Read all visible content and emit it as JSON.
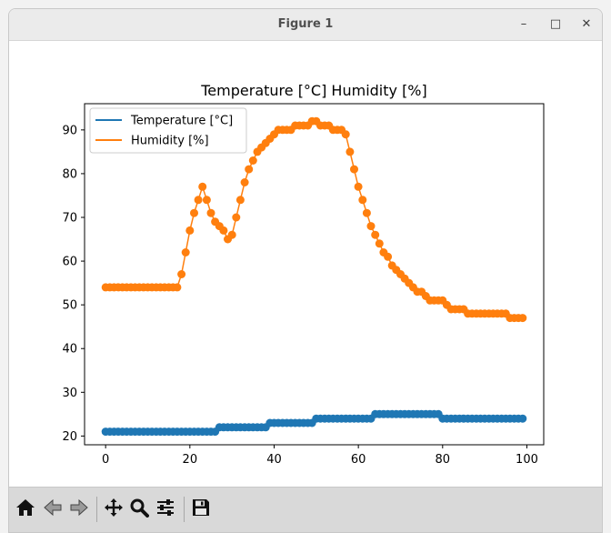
{
  "window": {
    "title": "Figure 1",
    "controls": {
      "minimize": "–",
      "maximize": "□",
      "close": "✕"
    }
  },
  "toolbar": {
    "buttons": [
      "home-icon",
      "back-arrow-icon",
      "forward-arrow-icon",
      "pan-icon",
      "zoom-icon",
      "configure-subplots-icon",
      "save-icon"
    ]
  },
  "colors": {
    "temperature": "#1f77b4",
    "humidity": "#ff7f0e"
  },
  "chart_data": {
    "type": "line",
    "title": "Temperature [°C] Humidity [%]",
    "xlabel": "",
    "ylabel": "",
    "xlim": [
      -5,
      104
    ],
    "ylim": [
      18,
      96
    ],
    "xticks": [
      0,
      20,
      40,
      60,
      80,
      100
    ],
    "yticks": [
      20,
      30,
      40,
      50,
      60,
      70,
      80,
      90
    ],
    "legend_position": "upper-left",
    "grid": false,
    "markers": true,
    "series": [
      {
        "name": "Temperature [°C]",
        "color": "#1f77b4",
        "x": [
          0,
          1,
          2,
          3,
          4,
          5,
          6,
          7,
          8,
          9,
          10,
          11,
          12,
          13,
          14,
          15,
          16,
          17,
          18,
          19,
          20,
          21,
          22,
          23,
          24,
          25,
          26,
          27,
          28,
          29,
          30,
          31,
          32,
          33,
          34,
          35,
          36,
          37,
          38,
          39,
          40,
          41,
          42,
          43,
          44,
          45,
          46,
          47,
          48,
          49,
          50,
          51,
          52,
          53,
          54,
          55,
          56,
          57,
          58,
          59,
          60,
          61,
          62,
          63,
          64,
          65,
          66,
          67,
          68,
          69,
          70,
          71,
          72,
          73,
          74,
          75,
          76,
          77,
          78,
          79,
          80,
          81,
          82,
          83,
          84,
          85,
          86,
          87,
          88,
          89,
          90,
          91,
          92,
          93,
          94,
          95,
          96,
          97,
          98,
          99
        ],
        "values": [
          21,
          21,
          21,
          21,
          21,
          21,
          21,
          21,
          21,
          21,
          21,
          21,
          21,
          21,
          21,
          21,
          21,
          21,
          21,
          21,
          21,
          21,
          21,
          21,
          21,
          21,
          21,
          22,
          22,
          22,
          22,
          22,
          22,
          22,
          22,
          22,
          22,
          22,
          22,
          23,
          23,
          23,
          23,
          23,
          23,
          23,
          23,
          23,
          23,
          23,
          24,
          24,
          24,
          24,
          24,
          24,
          24,
          24,
          24,
          24,
          24,
          24,
          24,
          24,
          25,
          25,
          25,
          25,
          25,
          25,
          25,
          25,
          25,
          25,
          25,
          25,
          25,
          25,
          25,
          25,
          24,
          24,
          24,
          24,
          24,
          24,
          24,
          24,
          24,
          24,
          24,
          24,
          24,
          24,
          24,
          24,
          24,
          24,
          24,
          24
        ]
      },
      {
        "name": "Humidity [%]",
        "color": "#ff7f0e",
        "x": [
          0,
          1,
          2,
          3,
          4,
          5,
          6,
          7,
          8,
          9,
          10,
          11,
          12,
          13,
          14,
          15,
          16,
          17,
          18,
          19,
          20,
          21,
          22,
          23,
          24,
          25,
          26,
          27,
          28,
          29,
          30,
          31,
          32,
          33,
          34,
          35,
          36,
          37,
          38,
          39,
          40,
          41,
          42,
          43,
          44,
          45,
          46,
          47,
          48,
          49,
          50,
          51,
          52,
          53,
          54,
          55,
          56,
          57,
          58,
          59,
          60,
          61,
          62,
          63,
          64,
          65,
          66,
          67,
          68,
          69,
          70,
          71,
          72,
          73,
          74,
          75,
          76,
          77,
          78,
          79,
          80,
          81,
          82,
          83,
          84,
          85,
          86,
          87,
          88,
          89,
          90,
          91,
          92,
          93,
          94,
          95,
          96,
          97,
          98,
          99
        ],
        "values": [
          54,
          54,
          54,
          54,
          54,
          54,
          54,
          54,
          54,
          54,
          54,
          54,
          54,
          54,
          54,
          54,
          54,
          54,
          57,
          62,
          67,
          71,
          74,
          77,
          74,
          71,
          69,
          68,
          67,
          65,
          66,
          70,
          74,
          78,
          81,
          83,
          85,
          86,
          87,
          88,
          89,
          90,
          90,
          90,
          90,
          91,
          91,
          91,
          91,
          92,
          92,
          91,
          91,
          91,
          90,
          90,
          90,
          89,
          85,
          81,
          77,
          74,
          71,
          68,
          66,
          64,
          62,
          61,
          59,
          58,
          57,
          56,
          55,
          54,
          53,
          53,
          52,
          51,
          51,
          51,
          51,
          50,
          49,
          49,
          49,
          49,
          48,
          48,
          48,
          48,
          48,
          48,
          48,
          48,
          48,
          48,
          47,
          47,
          47,
          47
        ]
      }
    ]
  }
}
